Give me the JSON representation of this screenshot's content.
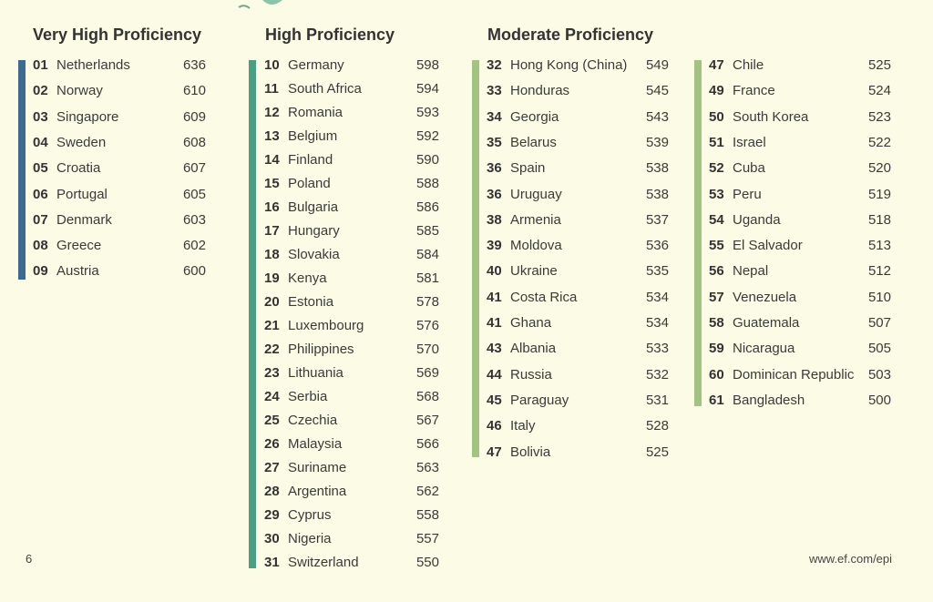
{
  "page_number": "6",
  "website": "www.ef.com/epi",
  "colors": {
    "background": "#fcfce6",
    "very_high": "#3d6a8e",
    "high": "#4a9e82",
    "moderate": "#a3c382"
  },
  "groups": [
    {
      "title": "Very High Proficiency",
      "rows": [
        {
          "rank": "01",
          "country": "Netherlands",
          "score": "636"
        },
        {
          "rank": "02",
          "country": "Norway",
          "score": "610"
        },
        {
          "rank": "03",
          "country": "Singapore",
          "score": "609"
        },
        {
          "rank": "04",
          "country": "Sweden",
          "score": "608"
        },
        {
          "rank": "05",
          "country": "Croatia",
          "score": "607"
        },
        {
          "rank": "06",
          "country": "Portugal",
          "score": "605"
        },
        {
          "rank": "07",
          "country": "Denmark",
          "score": "603"
        },
        {
          "rank": "08",
          "country": "Greece",
          "score": "602"
        },
        {
          "rank": "09",
          "country": "Austria",
          "score": "600"
        }
      ]
    },
    {
      "title": "High Proficiency",
      "rows": [
        {
          "rank": "10",
          "country": "Germany",
          "score": "598"
        },
        {
          "rank": "11",
          "country": "South Africa",
          "score": "594"
        },
        {
          "rank": "12",
          "country": "Romania",
          "score": "593"
        },
        {
          "rank": "13",
          "country": "Belgium",
          "score": "592"
        },
        {
          "rank": "14",
          "country": "Finland",
          "score": "590"
        },
        {
          "rank": "15",
          "country": "Poland",
          "score": "588"
        },
        {
          "rank": "16",
          "country": "Bulgaria",
          "score": "586"
        },
        {
          "rank": "17",
          "country": "Hungary",
          "score": "585"
        },
        {
          "rank": "18",
          "country": "Slovakia",
          "score": "584"
        },
        {
          "rank": "19",
          "country": "Kenya",
          "score": "581"
        },
        {
          "rank": "20",
          "country": "Estonia",
          "score": "578"
        },
        {
          "rank": "21",
          "country": "Luxembourg",
          "score": "576"
        },
        {
          "rank": "22",
          "country": "Philippines",
          "score": "570"
        },
        {
          "rank": "23",
          "country": "Lithuania",
          "score": "569"
        },
        {
          "rank": "24",
          "country": "Serbia",
          "score": "568"
        },
        {
          "rank": "25",
          "country": "Czechia",
          "score": "567"
        },
        {
          "rank": "26",
          "country": "Malaysia",
          "score": "566"
        },
        {
          "rank": "27",
          "country": "Suriname",
          "score": "563"
        },
        {
          "rank": "28",
          "country": "Argentina",
          "score": "562"
        },
        {
          "rank": "29",
          "country": "Cyprus",
          "score": "558"
        },
        {
          "rank": "30",
          "country": "Nigeria",
          "score": "557"
        },
        {
          "rank": "31",
          "country": "Switzerland",
          "score": "550"
        }
      ]
    },
    {
      "title": "Moderate Proficiency",
      "rows": [
        {
          "rank": "32",
          "country": "Hong Kong (China)",
          "score": "549"
        },
        {
          "rank": "33",
          "country": "Honduras",
          "score": "545"
        },
        {
          "rank": "34",
          "country": "Georgia",
          "score": "543"
        },
        {
          "rank": "35",
          "country": "Belarus",
          "score": "539"
        },
        {
          "rank": "36",
          "country": "Spain",
          "score": "538"
        },
        {
          "rank": "36",
          "country": "Uruguay",
          "score": "538"
        },
        {
          "rank": "38",
          "country": "Armenia",
          "score": "537"
        },
        {
          "rank": "39",
          "country": "Moldova",
          "score": "536"
        },
        {
          "rank": "40",
          "country": "Ukraine",
          "score": "535"
        },
        {
          "rank": "41",
          "country": "Costa Rica",
          "score": "534"
        },
        {
          "rank": "41",
          "country": "Ghana",
          "score": "534"
        },
        {
          "rank": "43",
          "country": "Albania",
          "score": "533"
        },
        {
          "rank": "44",
          "country": "Russia",
          "score": "532"
        },
        {
          "rank": "45",
          "country": "Paraguay",
          "score": "531"
        },
        {
          "rank": "46",
          "country": "Italy",
          "score": "528"
        },
        {
          "rank": "47",
          "country": "Bolivia",
          "score": "525"
        }
      ]
    },
    {
      "title": "",
      "rows": [
        {
          "rank": "47",
          "country": "Chile",
          "score": "525"
        },
        {
          "rank": "49",
          "country": "France",
          "score": "524"
        },
        {
          "rank": "50",
          "country": "South Korea",
          "score": "523"
        },
        {
          "rank": "51",
          "country": "Israel",
          "score": "522"
        },
        {
          "rank": "52",
          "country": "Cuba",
          "score": "520"
        },
        {
          "rank": "53",
          "country": "Peru",
          "score": "519"
        },
        {
          "rank": "54",
          "country": "Uganda",
          "score": "518"
        },
        {
          "rank": "55",
          "country": "El Salvador",
          "score": "513"
        },
        {
          "rank": "56",
          "country": "Nepal",
          "score": "512"
        },
        {
          "rank": "57",
          "country": "Venezuela",
          "score": "510"
        },
        {
          "rank": "58",
          "country": "Guatemala",
          "score": "507"
        },
        {
          "rank": "59",
          "country": "Nicaragua",
          "score": "505"
        },
        {
          "rank": "60",
          "country": "Dominican Republic",
          "score": "503"
        },
        {
          "rank": "61",
          "country": "Bangladesh",
          "score": "500"
        }
      ]
    }
  ]
}
